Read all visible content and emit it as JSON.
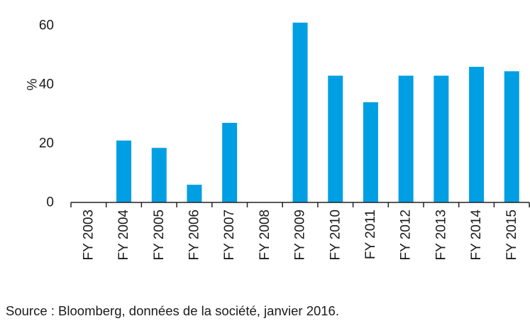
{
  "chart_data": {
    "type": "bar",
    "title": "",
    "xlabel": "",
    "ylabel": "%",
    "ylim": [
      0,
      60
    ],
    "yticks": [
      0,
      20,
      40,
      60
    ],
    "grid": false,
    "legend": "none",
    "categories": [
      "FY 2003",
      "FY 2004",
      "FY 2005",
      "FY 2006",
      "FY 2007",
      "FY 2008",
      "FY 2009",
      "FY 2010",
      "FY 2011",
      "FY 2012",
      "FY 2013",
      "FY 2014",
      "FY 2015"
    ],
    "values": [
      0,
      21,
      18.5,
      6,
      27,
      0,
      61,
      43,
      34,
      43,
      43,
      46,
      44.5
    ],
    "bar_color": "#009fe3"
  },
  "footer": {
    "source": "Source : Bloomberg, données de la société, janvier 2016."
  }
}
